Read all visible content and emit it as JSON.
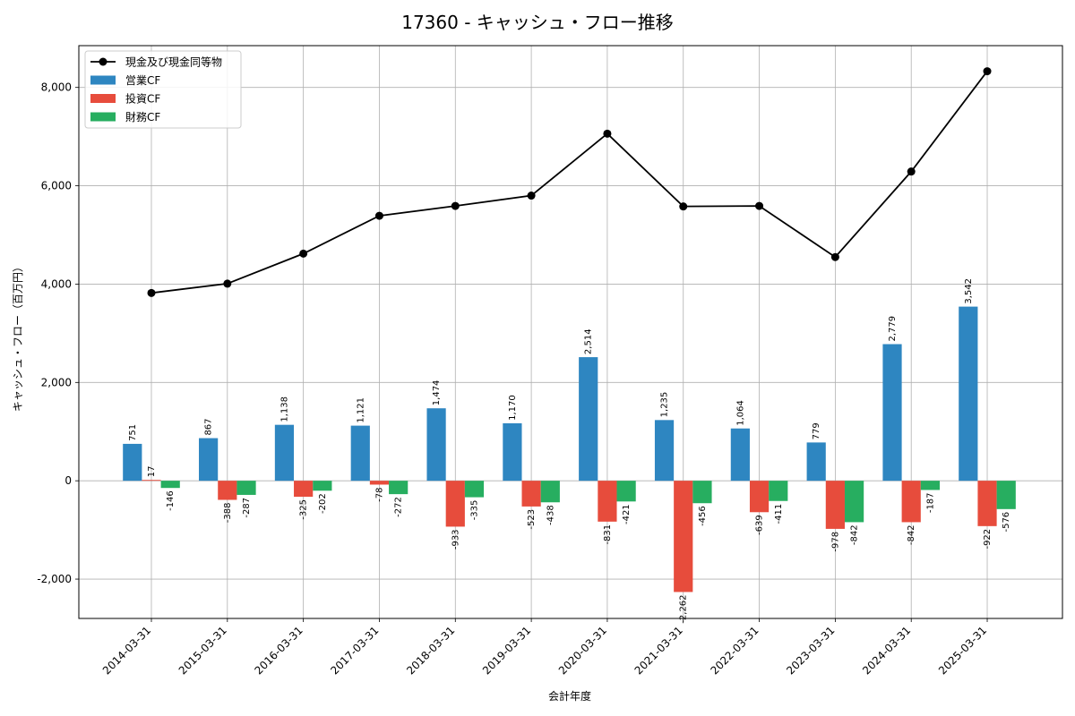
{
  "chart_data": {
    "type": "bar",
    "title": "17360 - キャッシュ・フロー推移",
    "xlabel": "会計年度",
    "ylabel": "キャッシュ・フロー（百万円）",
    "ylim": [
      -2800,
      8850
    ],
    "yticks": [
      -2000,
      0,
      2000,
      4000,
      6000,
      8000
    ],
    "ytick_labels": [
      "-2,000",
      "0",
      "2,000",
      "4,000",
      "6,000",
      "8,000"
    ],
    "grid": true,
    "legend_position": "top-left",
    "categories": [
      "2014-03-31",
      "2015-03-31",
      "2016-03-31",
      "2017-03-31",
      "2018-03-31",
      "2019-03-31",
      "2020-03-31",
      "2021-03-31",
      "2022-03-31",
      "2023-03-31",
      "2024-03-31",
      "2025-03-31"
    ],
    "series": [
      {
        "name": "現金及び現金同等物",
        "kind": "line",
        "color": "#000000",
        "values": [
          3820,
          4010,
          4620,
          5390,
          5590,
          5800,
          7060,
          5580,
          5590,
          4550,
          6290,
          8330
        ]
      },
      {
        "name": "営業CF",
        "kind": "bar",
        "color": "#2e86c1",
        "values": [
          751,
          867,
          1138,
          1121,
          1474,
          1170,
          2514,
          1235,
          1064,
          779,
          2779,
          3542
        ],
        "labels": [
          "751",
          "867",
          "1,138",
          "1,121",
          "1,474",
          "1,170",
          "2,514",
          "1,235",
          "1,064",
          "779",
          "2,779",
          "3,542"
        ]
      },
      {
        "name": "投資CF",
        "kind": "bar",
        "color": "#e74c3c",
        "values": [
          17,
          -388,
          -325,
          -78,
          -933,
          -523,
          -831,
          -2262,
          -639,
          -978,
          -842,
          -922
        ],
        "labels": [
          "17",
          "-388",
          "-325",
          "-78",
          "-933",
          "-523",
          "-831",
          "-2,262",
          "-639",
          "-978",
          "-842",
          "-922"
        ]
      },
      {
        "name": "財務CF",
        "kind": "bar",
        "color": "#27ae60",
        "values": [
          -146,
          -287,
          -202,
          -272,
          -335,
          -438,
          -421,
          -456,
          -411,
          -842,
          -187,
          -576
        ],
        "labels": [
          "-146",
          "-287",
          "-202",
          "-272",
          "-335",
          "-438",
          "-421",
          "-456",
          "-411",
          "-842",
          "-187",
          "-576"
        ]
      }
    ]
  }
}
